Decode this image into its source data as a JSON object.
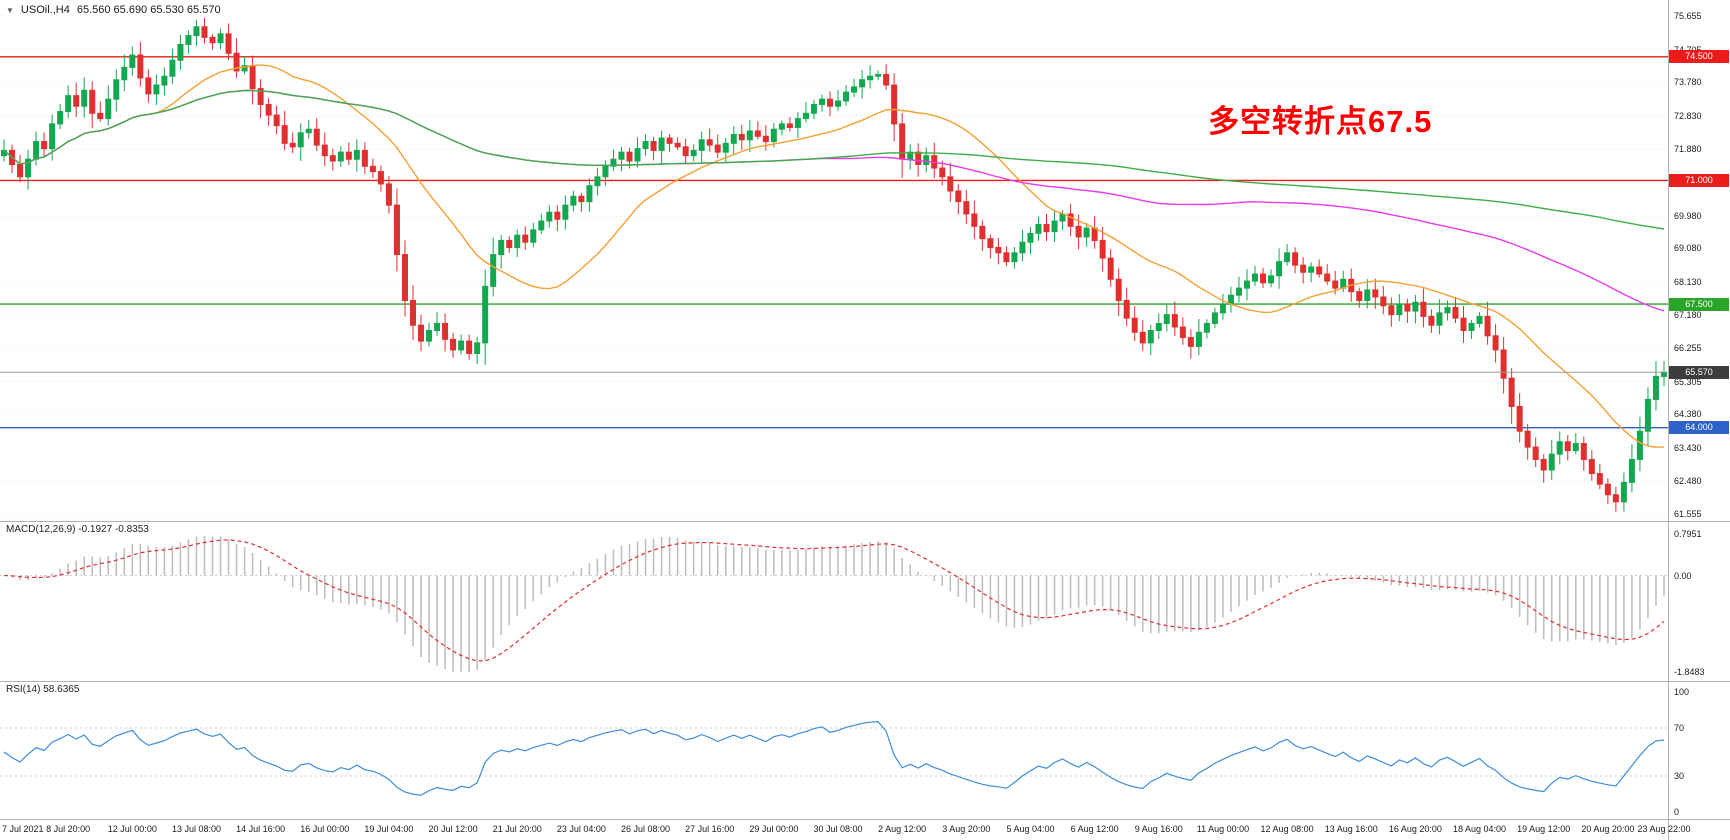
{
  "header": {
    "symbol_period": "USOil.,H4",
    "ohlc": "65.560 65.690 65.530 65.570"
  },
  "annotation": {
    "text": "多空转折点67.5",
    "color": "#ff0000"
  },
  "chart_data": {
    "type": "candlestick",
    "symbol": "USOil",
    "timeframe": "H4",
    "last_ohlc": {
      "open": "65.560",
      "high": "65.690",
      "low": "65.530",
      "close": "65.570"
    },
    "price_axis": {
      "min": 61.555,
      "max": 75.655,
      "ticks": [
        "75.655",
        "74.705",
        "73.780",
        "72.830",
        "71.880",
        "70.930",
        "69.980",
        "69.080",
        "68.130",
        "67.180",
        "66.255",
        "65.305",
        "64.380",
        "63.430",
        "62.480",
        "61.555"
      ]
    },
    "x_label_interval": 8,
    "x_labels": [
      "7 Jul 2021",
      "8 Jul 20:00",
      "12 Jul 00:00",
      "13 Jul 08:00",
      "14 Jul 16:00",
      "16 Jul 00:00",
      "19 Jul 04:00",
      "20 Jul 12:00",
      "21 Jul 20:00",
      "23 Jul 04:00",
      "26 Jul 08:00",
      "27 Jul 16:00",
      "29 Jul 00:00",
      "30 Jul 08:00",
      "2 Aug 12:00",
      "3 Aug 20:00",
      "5 Aug 04:00",
      "6 Aug 12:00",
      "9 Aug 16:00",
      "11 Aug 00:00",
      "12 Aug 08:00",
      "13 Aug 16:00",
      "16 Aug 20:00",
      "18 Aug 04:00",
      "19 Aug 12:00",
      "20 Aug 20:00",
      "23 Aug 22:00"
    ],
    "closes": [
      71.85,
      71.45,
      71.1,
      71.6,
      72.1,
      71.9,
      72.6,
      72.95,
      73.4,
      73.1,
      73.55,
      72.9,
      72.75,
      73.3,
      73.85,
      74.2,
      74.55,
      73.9,
      73.45,
      73.7,
      73.95,
      74.4,
      74.85,
      75.1,
      75.35,
      75.05,
      74.9,
      75.15,
      74.6,
      74.1,
      74.25,
      73.6,
      73.15,
      72.85,
      72.55,
      72.05,
      71.95,
      72.35,
      72.45,
      72.0,
      71.7,
      71.55,
      71.8,
      71.6,
      71.85,
      71.4,
      71.25,
      70.9,
      70.3,
      68.9,
      67.6,
      66.9,
      66.45,
      66.75,
      66.95,
      66.5,
      66.2,
      66.45,
      66.1,
      66.4,
      68.0,
      68.9,
      69.3,
      69.1,
      69.45,
      69.25,
      69.6,
      69.85,
      70.1,
      69.9,
      70.3,
      70.55,
      70.4,
      70.85,
      71.1,
      71.4,
      71.6,
      71.8,
      71.55,
      71.9,
      72.1,
      71.85,
      72.2,
      72.05,
      71.95,
      71.7,
      71.85,
      72.15,
      72.0,
      71.8,
      72.05,
      72.3,
      72.15,
      72.4,
      72.25,
      72.1,
      72.45,
      72.6,
      72.5,
      72.75,
      72.9,
      73.15,
      73.3,
      73.1,
      73.25,
      73.5,
      73.65,
      73.85,
      73.95,
      74.0,
      73.7,
      72.6,
      71.6,
      71.8,
      71.45,
      71.7,
      71.35,
      71.1,
      70.7,
      70.4,
      70.05,
      69.7,
      69.35,
      69.1,
      68.95,
      68.7,
      68.95,
      69.25,
      69.5,
      69.75,
      69.55,
      69.85,
      70.05,
      69.7,
      69.4,
      69.65,
      69.3,
      68.8,
      68.2,
      67.6,
      67.1,
      66.7,
      66.4,
      66.75,
      66.95,
      67.2,
      66.85,
      66.55,
      66.3,
      66.7,
      66.95,
      67.25,
      67.5,
      67.75,
      67.95,
      68.15,
      68.35,
      68.1,
      68.3,
      68.7,
      68.95,
      68.6,
      68.4,
      68.55,
      68.35,
      68.15,
      67.95,
      68.2,
      67.85,
      67.6,
      67.9,
      67.7,
      67.45,
      67.2,
      67.5,
      67.3,
      67.55,
      67.15,
      66.9,
      67.25,
      67.4,
      67.1,
      66.75,
      66.95,
      67.15,
      66.6,
      66.2,
      65.4,
      64.6,
      63.9,
      63.45,
      63.1,
      62.8,
      63.25,
      63.6,
      63.35,
      63.55,
      63.1,
      62.7,
      62.4,
      62.1,
      61.9,
      62.45,
      63.1,
      63.9,
      64.8,
      65.45,
      65.57
    ],
    "candle_up_color": "#13a84f",
    "candle_down_color": "#e12f2f",
    "moving_averages": [
      {
        "name": "fast-ma",
        "period": 20,
        "color": "#f6a034"
      },
      {
        "name": "medium-ma",
        "period": 96,
        "color": "#ea3bea"
      },
      {
        "name": "slow-ma",
        "period": 200,
        "color": "#3fae49"
      }
    ],
    "horizontal_lines": [
      {
        "value": 74.5,
        "label": "74.500",
        "color": "#ec1c1c"
      },
      {
        "value": 71.0,
        "label": "71.000",
        "color": "#ec1c1c"
      },
      {
        "value": 67.5,
        "label": "67.500",
        "color": "#2aa52a"
      },
      {
        "value": 64.0,
        "label": "64.000",
        "color": "#2e62c8"
      }
    ],
    "last_price": {
      "value": 65.57,
      "label": "65.570",
      "line_color": "#9b9b9b",
      "tag_color": "#3d3d3d"
    },
    "indicators": [
      {
        "type": "MACD",
        "label": "MACD(12,26,9) -0.1927 -0.8353",
        "fast": 12,
        "slow": 26,
        "signal": 9,
        "value": -0.1927,
        "signal_value": -0.8353,
        "axis_top": 0.7951,
        "axis_bottom": -1.8483,
        "ticks": [
          "0.7951",
          "0.00",
          "-1.8483"
        ],
        "histogram_color": "#bfbfbf",
        "signal_color": "#e23030"
      },
      {
        "type": "RSI",
        "label": "RSI(14) 58.6365",
        "period": 14,
        "value": 58.6365,
        "ticks": [
          "100",
          "70",
          "30",
          "0"
        ],
        "levels": [
          70,
          30
        ],
        "line_color": "#3c8ddc"
      }
    ]
  }
}
